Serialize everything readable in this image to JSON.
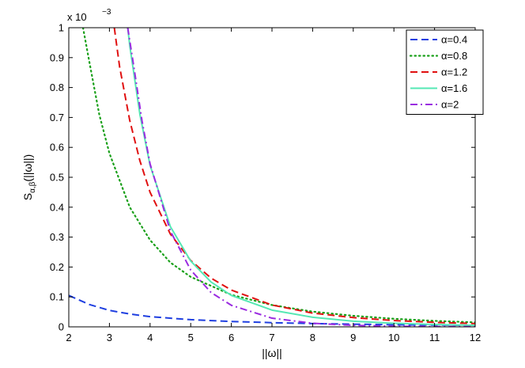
{
  "chart_data": {
    "type": "line",
    "xlabel": "||ω||",
    "ylabel_main": "S",
    "ylabel_sub": "α,β",
    "ylabel_tail": "(||ω||)",
    "exponent_label": {
      "base": "x 10",
      "power": "−3"
    },
    "xlim": [
      2,
      12
    ],
    "ylim": [
      0,
      1
    ],
    "y_scale_note": "values in units of 1e-3",
    "x_ticks": [
      "2",
      "3",
      "4",
      "5",
      "6",
      "7",
      "8",
      "9",
      "10",
      "11",
      "12"
    ],
    "y_ticks": [
      "0",
      "0.1",
      "0.2",
      "0.3",
      "0.4",
      "0.5",
      "0.6",
      "0.7",
      "0.8",
      "0.9",
      "1"
    ],
    "grid": false,
    "legend_position": "top-right",
    "series": [
      {
        "name": "α=0.4",
        "color": "#1f3fe0",
        "dash": "dashed",
        "x": [
          2.0,
          2.5,
          3.0,
          3.5,
          4.0,
          5.0,
          6.0,
          7.0,
          8.0,
          9.0,
          10.0,
          11.0,
          12.0
        ],
        "y": [
          0.105,
          0.075,
          0.055,
          0.043,
          0.034,
          0.024,
          0.018,
          0.014,
          0.011,
          0.009,
          0.007,
          0.006,
          0.005
        ]
      },
      {
        "name": "α=0.8",
        "color": "#1aa01a",
        "dash": "dotted",
        "x": [
          2.35,
          2.5,
          2.75,
          3.0,
          3.5,
          4.0,
          4.5,
          5.0,
          6.0,
          7.0,
          8.0,
          9.0,
          10.0,
          11.0,
          12.0
        ],
        "y": [
          1.0,
          0.89,
          0.71,
          0.58,
          0.4,
          0.29,
          0.215,
          0.167,
          0.107,
          0.073,
          0.051,
          0.037,
          0.027,
          0.02,
          0.015
        ]
      },
      {
        "name": "α=1.2",
        "color": "#e01010",
        "dash": "dashed",
        "x": [
          3.12,
          3.25,
          3.5,
          3.75,
          4.0,
          4.5,
          5.0,
          5.5,
          6.0,
          7.0,
          8.0,
          9.0,
          10.0,
          11.0,
          12.0
        ],
        "y": [
          1.0,
          0.87,
          0.69,
          0.555,
          0.45,
          0.31,
          0.222,
          0.163,
          0.123,
          0.073,
          0.046,
          0.031,
          0.021,
          0.015,
          0.011
        ]
      },
      {
        "name": "α=1.6",
        "color": "#55e8b4",
        "dash": "solid",
        "x": [
          3.45,
          3.5,
          3.75,
          4.0,
          4.5,
          5.0,
          5.5,
          6.0,
          7.0,
          8.0,
          9.0,
          10.0,
          11.0,
          12.0
        ],
        "y": [
          1.0,
          0.94,
          0.71,
          0.54,
          0.335,
          0.22,
          0.15,
          0.105,
          0.056,
          0.032,
          0.019,
          0.012,
          0.008,
          0.005
        ]
      },
      {
        "name": "α=2",
        "color": "#9a2be0",
        "dash": "dashdot",
        "x": [
          3.45,
          3.6,
          3.8,
          4.0,
          4.5,
          5.0,
          5.5,
          6.0,
          7.0,
          8.0,
          9.0,
          10.0,
          11.0,
          12.0
        ],
        "y": [
          1.0,
          0.87,
          0.69,
          0.545,
          0.32,
          0.19,
          0.115,
          0.072,
          0.029,
          0.012,
          0.005,
          0.002,
          0.001,
          0.0005
        ]
      }
    ]
  }
}
